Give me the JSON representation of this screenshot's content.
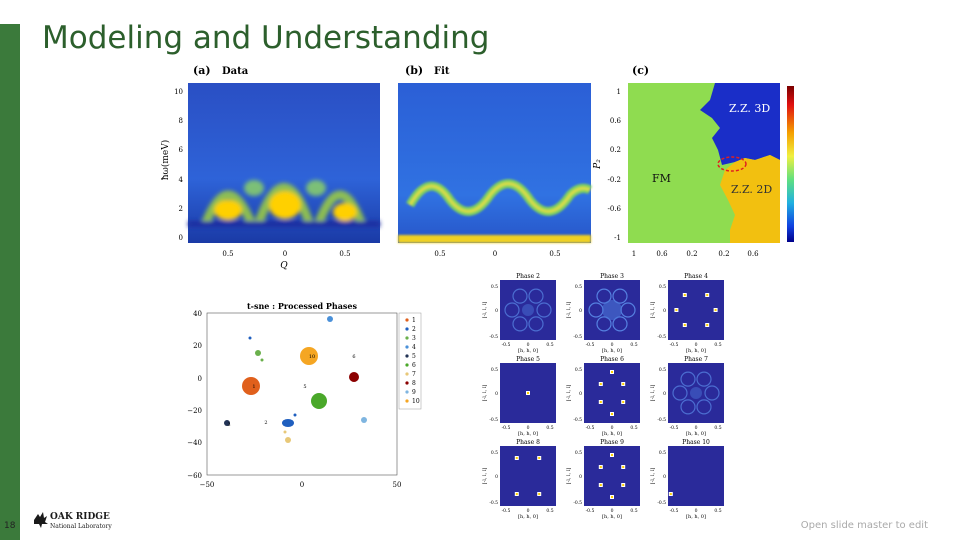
{
  "slide": {
    "title": "Modeling and Understanding",
    "page_number": "18",
    "footer_text": "Open slide master to edit",
    "logo": {
      "line1": "OAK RIDGE",
      "line2": "National Laboratory"
    }
  },
  "colors": {
    "accent": "#3b7a3b",
    "title": "#2c5f2c"
  },
  "panels": {
    "a": {
      "label": "(a)",
      "name": "Data",
      "ylabel": "ħω(meV)",
      "xlabel": "Q",
      "yticks": [
        "10",
        "8",
        "6",
        "4",
        "2",
        "0"
      ],
      "xticks": [
        "0.5",
        "0",
        "0.5"
      ]
    },
    "b": {
      "label": "(b)",
      "name": "Fit",
      "xticks": [
        "0.5",
        "0",
        "0.5"
      ]
    },
    "c": {
      "label": "(c)",
      "ylabel": "P₂",
      "yticks": [
        "1",
        "0.6",
        "0.2",
        "-0.2",
        "-0.6",
        "-1"
      ],
      "xticks": [
        "1",
        "0.6",
        "0.2",
        "0.2",
        "0.6"
      ],
      "region_labels": {
        "zz3d": "Z.Z. 3D",
        "fm": "FM",
        "zz2d": "Z.Z. 2D"
      }
    }
  },
  "tsne": {
    "title": "t-sne : Processed Phases",
    "yticks": [
      "40",
      "20",
      "0",
      "−20",
      "−40",
      "−60"
    ],
    "xticks": [
      "−50",
      "0",
      "50"
    ],
    "legend": [
      "1",
      "2",
      "3",
      "4",
      "5",
      "6",
      "7",
      "8",
      "9",
      "10"
    ],
    "point_labels": [
      "10",
      "6",
      "5",
      "3",
      "2",
      "1"
    ]
  },
  "phases": [
    {
      "title": "Phase 2",
      "ylabel": "[-l, l, l]",
      "xlabel": "[h, h, 0]",
      "xticks": [
        "-0.5",
        "0",
        "0.5"
      ],
      "yticks": [
        "0.5",
        "0",
        "-0.5"
      ]
    },
    {
      "title": "Phase 3",
      "ylabel": "[-l, l, l]",
      "xlabel": "[h, h, 0]",
      "xticks": [
        "-0.5",
        "0",
        "0.5"
      ],
      "yticks": [
        "0.5",
        "0",
        "-0.5"
      ]
    },
    {
      "title": "Phase 4",
      "ylabel": "[-l, l, l]",
      "xlabel": "[h, h, 0]",
      "xticks": [
        "-0.5",
        "0",
        "0.5"
      ],
      "yticks": [
        "0.5",
        "0",
        "-0.5"
      ]
    },
    {
      "title": "Phase 5",
      "ylabel": "[-l, l, l]",
      "xlabel": "[h, h, 0]",
      "xticks": [
        "-0.5",
        "0",
        "0.5"
      ],
      "yticks": [
        "0.5",
        "0",
        "-0.5"
      ]
    },
    {
      "title": "Phase 6",
      "ylabel": "[-l, l, l]",
      "xlabel": "[h, h, 0]",
      "xticks": [
        "-0.5",
        "0",
        "0.5"
      ],
      "yticks": [
        "0.5",
        "0",
        "-0.5"
      ]
    },
    {
      "title": "Phase 7",
      "ylabel": "[-l, l, l]",
      "xlabel": "[h, h, 0]",
      "xticks": [
        "-0.5",
        "0",
        "0.5"
      ],
      "yticks": [
        "0.5",
        "0",
        "-0.5"
      ]
    },
    {
      "title": "Phase 8",
      "ylabel": "[-l, l, l]",
      "xlabel": "[h, h, 0]",
      "xticks": [
        "-0.5",
        "0",
        "0.5"
      ],
      "yticks": [
        "0.5",
        "0",
        "-0.5"
      ]
    },
    {
      "title": "Phase 9",
      "ylabel": "[-l, l, l]",
      "xlabel": "[h, h, 0]",
      "xticks": [
        "-0.5",
        "0",
        "0.5"
      ],
      "yticks": [
        "0.5",
        "0",
        "-0.5"
      ]
    },
    {
      "title": "Phase 10",
      "ylabel": "[-l, l, l]",
      "xlabel": "[h, h, 0]",
      "xticks": [
        "-0.5",
        "0",
        "0.5"
      ],
      "yticks": [
        "0.5",
        "0",
        "-0.5"
      ]
    }
  ]
}
